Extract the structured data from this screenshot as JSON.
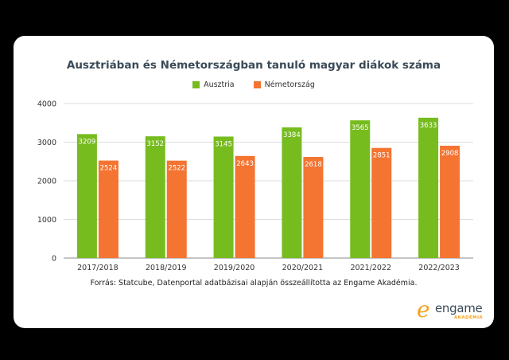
{
  "chart_data": {
    "type": "bar",
    "title": "Ausztriában és Németországban tanuló magyar diákok száma",
    "categories": [
      "2017/2018",
      "2018/2019",
      "2019/2020",
      "2020/2021",
      "2021/2022",
      "2022/2023"
    ],
    "series": [
      {
        "name": "Ausztria",
        "color": "#77bc1f",
        "values": [
          3209,
          3152,
          3145,
          3384,
          3565,
          3633
        ]
      },
      {
        "name": "Németország",
        "color": "#f47432",
        "values": [
          2524,
          2522,
          2643,
          2618,
          2851,
          2908
        ]
      }
    ],
    "ylim": [
      0,
      4000
    ],
    "yticks": [
      0,
      1000,
      2000,
      3000,
      4000
    ],
    "grid": true,
    "legend": "top-center",
    "data_labels": true
  },
  "source": "Forrás: Statcube, Datenportal adatbázisai alapján összeállította az Engame Akadémia.",
  "logo": {
    "mark": "e",
    "word": "engame",
    "sub": "AKADÉMIA"
  }
}
